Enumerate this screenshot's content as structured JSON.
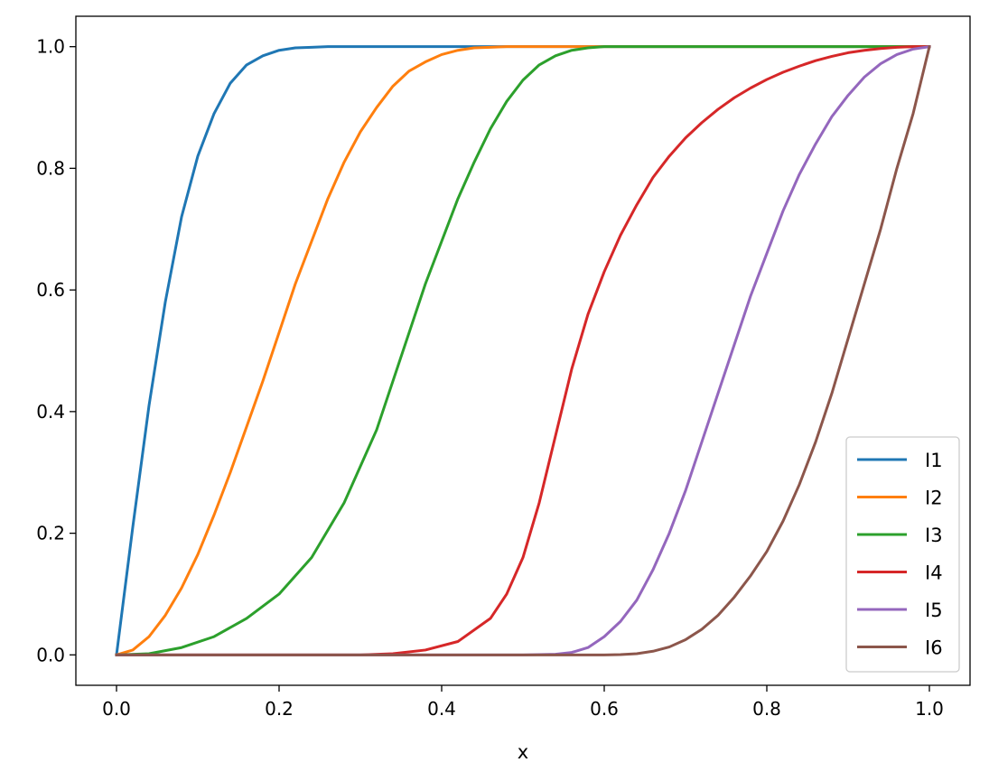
{
  "chart_data": {
    "type": "line",
    "title": "",
    "xlabel": "x",
    "ylabel": "",
    "xlim": [
      -0.05,
      1.05
    ],
    "ylim": [
      -0.05,
      1.05
    ],
    "xticks": [
      0.0,
      0.2,
      0.4,
      0.6,
      0.8,
      1.0
    ],
    "xtick_labels": [
      "0.0",
      "0.2",
      "0.4",
      "0.6",
      "0.8",
      "1.0"
    ],
    "yticks": [
      0.0,
      0.2,
      0.4,
      0.6,
      0.8,
      1.0
    ],
    "ytick_labels": [
      "0.0",
      "0.2",
      "0.4",
      "0.6",
      "0.8",
      "1.0"
    ],
    "grid": false,
    "legend_position": "lower-right",
    "series": [
      {
        "name": "I1",
        "color": "#1f77b4",
        "x": [
          0.0,
          0.02,
          0.04,
          0.06,
          0.08,
          0.1,
          0.12,
          0.14,
          0.16,
          0.18,
          0.2,
          0.22,
          0.24,
          0.26,
          0.28,
          0.3,
          0.4,
          0.5,
          1.0
        ],
        "y": [
          0.0,
          0.21,
          0.41,
          0.58,
          0.72,
          0.82,
          0.89,
          0.94,
          0.97,
          0.985,
          0.994,
          0.998,
          0.999,
          1.0,
          1.0,
          1.0,
          1.0,
          1.0,
          1.0
        ]
      },
      {
        "name": "I2",
        "color": "#ff7f0e",
        "x": [
          0.0,
          0.02,
          0.04,
          0.06,
          0.08,
          0.1,
          0.12,
          0.14,
          0.16,
          0.18,
          0.2,
          0.22,
          0.24,
          0.26,
          0.28,
          0.3,
          0.32,
          0.34,
          0.36,
          0.38,
          0.4,
          0.42,
          0.44,
          0.46,
          0.48,
          0.5,
          0.6,
          1.0
        ],
        "y": [
          0.0,
          0.008,
          0.03,
          0.065,
          0.11,
          0.165,
          0.23,
          0.3,
          0.375,
          0.45,
          0.53,
          0.61,
          0.68,
          0.75,
          0.81,
          0.86,
          0.9,
          0.935,
          0.96,
          0.975,
          0.987,
          0.994,
          0.998,
          0.999,
          1.0,
          1.0,
          1.0,
          1.0
        ]
      },
      {
        "name": "I3",
        "color": "#2ca02c",
        "x": [
          0.0,
          0.04,
          0.08,
          0.12,
          0.16,
          0.2,
          0.24,
          0.28,
          0.32,
          0.34,
          0.36,
          0.38,
          0.4,
          0.42,
          0.44,
          0.46,
          0.48,
          0.5,
          0.52,
          0.54,
          0.56,
          0.58,
          0.6,
          0.7,
          1.0
        ],
        "y": [
          0.0,
          0.002,
          0.012,
          0.03,
          0.06,
          0.1,
          0.16,
          0.25,
          0.37,
          0.45,
          0.53,
          0.61,
          0.68,
          0.75,
          0.81,
          0.865,
          0.91,
          0.945,
          0.97,
          0.985,
          0.994,
          0.998,
          1.0,
          1.0,
          1.0
        ]
      },
      {
        "name": "I4",
        "color": "#d62728",
        "x": [
          0.0,
          0.3,
          0.34,
          0.38,
          0.42,
          0.46,
          0.48,
          0.5,
          0.52,
          0.54,
          0.56,
          0.58,
          0.6,
          0.62,
          0.64,
          0.66,
          0.68,
          0.7,
          0.72,
          0.74,
          0.76,
          0.78,
          0.8,
          0.82,
          0.84,
          0.86,
          0.88,
          0.9,
          0.92,
          0.94,
          0.96,
          0.98,
          1.0
        ],
        "y": [
          0.0,
          0.0,
          0.002,
          0.008,
          0.022,
          0.06,
          0.1,
          0.16,
          0.25,
          0.36,
          0.47,
          0.56,
          0.63,
          0.69,
          0.74,
          0.785,
          0.82,
          0.85,
          0.875,
          0.897,
          0.916,
          0.932,
          0.946,
          0.958,
          0.968,
          0.977,
          0.984,
          0.99,
          0.994,
          0.997,
          0.999,
          1.0,
          1.0
        ]
      },
      {
        "name": "I5",
        "color": "#9467bd",
        "x": [
          0.0,
          0.5,
          0.54,
          0.56,
          0.58,
          0.6,
          0.62,
          0.64,
          0.66,
          0.68,
          0.7,
          0.72,
          0.74,
          0.76,
          0.78,
          0.8,
          0.82,
          0.84,
          0.86,
          0.88,
          0.9,
          0.92,
          0.94,
          0.96,
          0.98,
          1.0
        ],
        "y": [
          0.0,
          0.0,
          0.001,
          0.004,
          0.012,
          0.03,
          0.055,
          0.09,
          0.14,
          0.2,
          0.27,
          0.35,
          0.43,
          0.51,
          0.59,
          0.66,
          0.73,
          0.79,
          0.84,
          0.885,
          0.92,
          0.95,
          0.972,
          0.987,
          0.996,
          1.0
        ]
      },
      {
        "name": "I6",
        "color": "#8c564b",
        "x": [
          0.0,
          0.6,
          0.62,
          0.64,
          0.66,
          0.68,
          0.7,
          0.72,
          0.74,
          0.76,
          0.78,
          0.8,
          0.82,
          0.84,
          0.86,
          0.88,
          0.9,
          0.92,
          0.94,
          0.96,
          0.98,
          1.0
        ],
        "y": [
          0.0,
          0.0,
          0.0005,
          0.002,
          0.006,
          0.013,
          0.025,
          0.042,
          0.065,
          0.095,
          0.13,
          0.17,
          0.22,
          0.28,
          0.35,
          0.43,
          0.52,
          0.61,
          0.7,
          0.8,
          0.89,
          1.0
        ]
      }
    ]
  }
}
